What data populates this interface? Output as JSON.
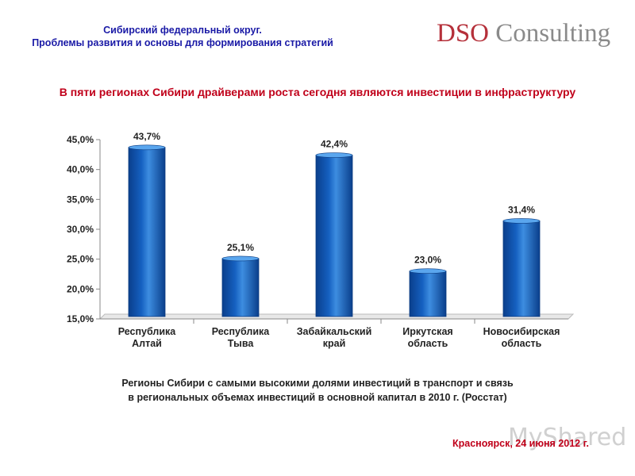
{
  "header": {
    "line1": "Сибирский федеральный округ.",
    "line2": "Проблемы развития и основы для формирования стратегий"
  },
  "logo": {
    "part1": "DSO",
    "part2": "Consulting"
  },
  "headline": "В пяти регионах Сибири драйверами роста сегодня являются инвестиции в инфраструктуру",
  "chart_data": {
    "type": "bar",
    "categories": [
      [
        "Республика",
        "Алтай"
      ],
      [
        "Республика",
        "Тыва"
      ],
      [
        "Забайкальский",
        "край"
      ],
      [
        "Иркутская",
        "область"
      ],
      [
        "Новосибирская",
        "область"
      ]
    ],
    "values": [
      43.7,
      25.1,
      42.4,
      23.0,
      31.4
    ],
    "data_labels": [
      "43,7%",
      "25,1%",
      "42,4%",
      "23,0%",
      "31,4%"
    ],
    "y_ticks": [
      15,
      20,
      25,
      30,
      35,
      40,
      45
    ],
    "y_tick_labels": [
      "15,0%",
      "20,0%",
      "25,0%",
      "30,0%",
      "35,0%",
      "40,0%",
      "45,0%"
    ],
    "ylim": [
      15,
      45
    ],
    "grid": false,
    "legend": "none",
    "bar_color": "#1560c0",
    "title": "",
    "xlabel": "",
    "ylabel": ""
  },
  "caption": {
    "line1": "Регионы Сибири с самыми высокими долями инвестиций в транспорт и связь",
    "line2": "в региональных объемах инвестиций в основной капитал в 2010 г.  (Росстат)"
  },
  "footer": "Красноярск, 24 июня 2012 г.",
  "watermark": "MyShared"
}
